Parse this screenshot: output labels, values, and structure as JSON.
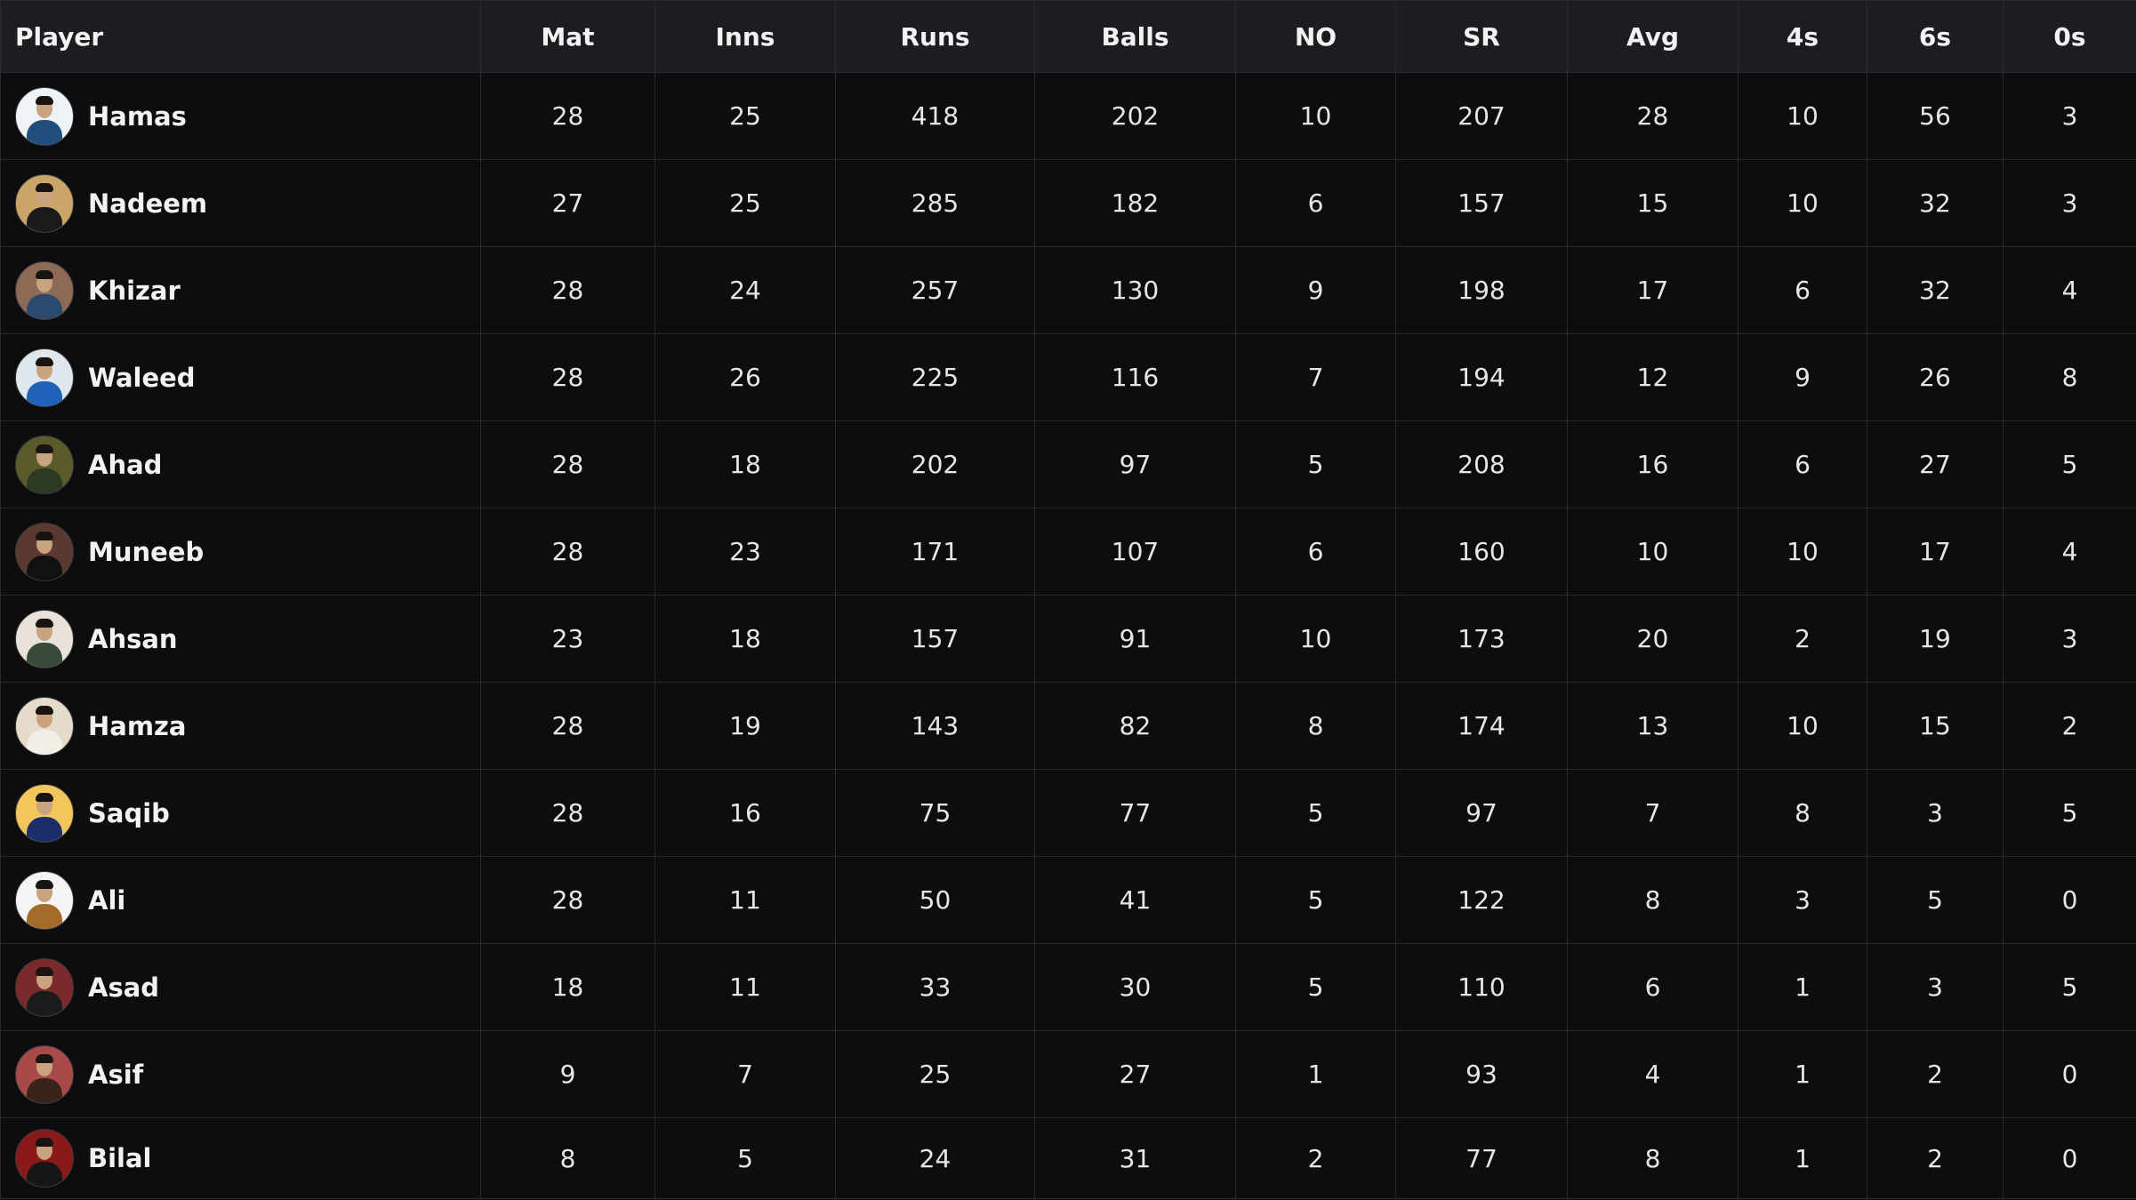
{
  "columns": [
    "Player",
    "Mat",
    "Inns",
    "Runs",
    "Balls",
    "NO",
    "SR",
    "Avg",
    "4s",
    "6s",
    "0s"
  ],
  "rows": [
    {
      "name": "Hamas",
      "stats": [
        "28",
        "25",
        "418",
        "202",
        "10",
        "207",
        "28",
        "10",
        "56",
        "3"
      ],
      "avatar_bg": "#eef3f6",
      "avatar_body": "#1f4e7a"
    },
    {
      "name": "Nadeem",
      "stats": [
        "27",
        "25",
        "285",
        "182",
        "6",
        "157",
        "15",
        "10",
        "32",
        "3"
      ],
      "avatar_bg": "#caa56a",
      "avatar_body": "#1a1a1a"
    },
    {
      "name": "Khizar",
      "stats": [
        "28",
        "24",
        "257",
        "130",
        "9",
        "198",
        "17",
        "6",
        "32",
        "4"
      ],
      "avatar_bg": "#8c6a55",
      "avatar_body": "#2b4a6e"
    },
    {
      "name": "Waleed",
      "stats": [
        "28",
        "26",
        "225",
        "116",
        "7",
        "194",
        "12",
        "9",
        "26",
        "8"
      ],
      "avatar_bg": "#dfe7ec",
      "avatar_body": "#1e63b8"
    },
    {
      "name": "Ahad",
      "stats": [
        "28",
        "18",
        "202",
        "97",
        "5",
        "208",
        "16",
        "6",
        "27",
        "5"
      ],
      "avatar_bg": "#5a5a2a",
      "avatar_body": "#2c3a22"
    },
    {
      "name": "Muneeb",
      "stats": [
        "28",
        "23",
        "171",
        "107",
        "6",
        "160",
        "10",
        "10",
        "17",
        "4"
      ],
      "avatar_bg": "#5a3a30",
      "avatar_body": "#111111"
    },
    {
      "name": "Ahsan",
      "stats": [
        "23",
        "18",
        "157",
        "91",
        "10",
        "173",
        "20",
        "2",
        "19",
        "3"
      ],
      "avatar_bg": "#e8e2da",
      "avatar_body": "#3a4a3a"
    },
    {
      "name": "Hamza",
      "stats": [
        "28",
        "19",
        "143",
        "82",
        "8",
        "174",
        "13",
        "10",
        "15",
        "2"
      ],
      "avatar_bg": "#e6dccc",
      "avatar_body": "#f1efe8"
    },
    {
      "name": "Saqib",
      "stats": [
        "28",
        "16",
        "75",
        "77",
        "5",
        "97",
        "7",
        "8",
        "3",
        "5"
      ],
      "avatar_bg": "#f2c65a",
      "avatar_body": "#1c2d6b"
    },
    {
      "name": "Ali",
      "stats": [
        "28",
        "11",
        "50",
        "41",
        "5",
        "122",
        "8",
        "3",
        "5",
        "0"
      ],
      "avatar_bg": "#f4f4f2",
      "avatar_body": "#a46a2a"
    },
    {
      "name": "Asad",
      "stats": [
        "18",
        "11",
        "33",
        "30",
        "5",
        "110",
        "6",
        "1",
        "3",
        "5"
      ],
      "avatar_bg": "#7a2a2a",
      "avatar_body": "#1b1b1b"
    },
    {
      "name": "Asif",
      "stats": [
        "9",
        "7",
        "25",
        "27",
        "1",
        "93",
        "4",
        "1",
        "2",
        "0"
      ],
      "avatar_bg": "#a84a4a",
      "avatar_body": "#3a2418"
    },
    {
      "name": "Bilal",
      "stats": [
        "8",
        "5",
        "24",
        "31",
        "2",
        "77",
        "8",
        "1",
        "2",
        "0"
      ],
      "avatar_bg": "#8a1a1a",
      "avatar_body": "#161616"
    }
  ]
}
